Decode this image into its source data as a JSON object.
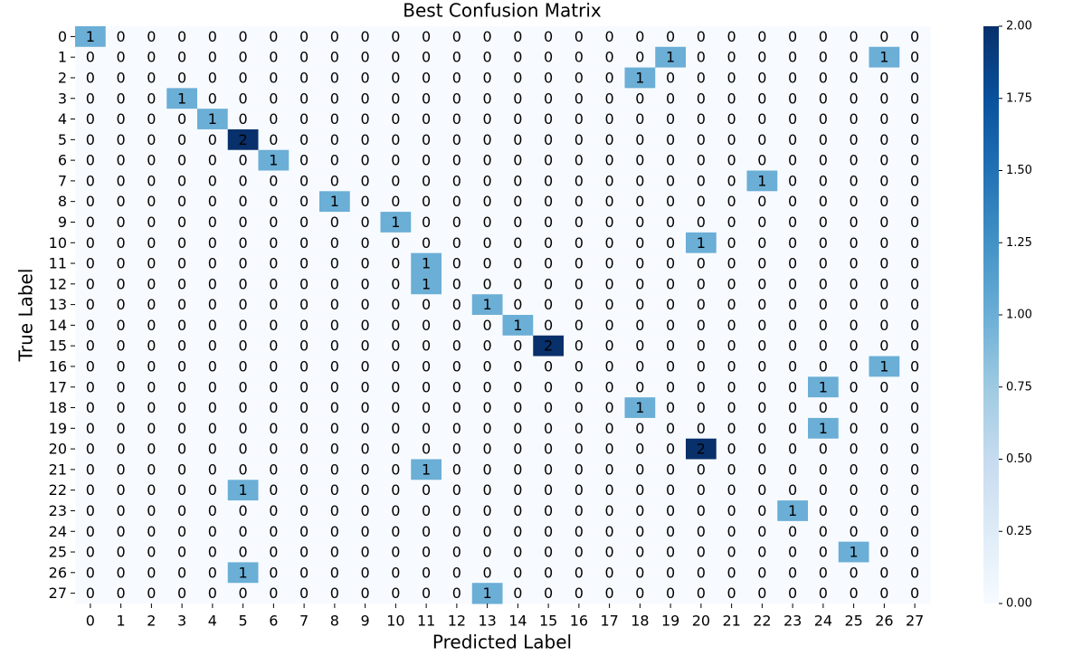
{
  "chart_data": {
    "type": "heatmap",
    "title": "Best Confusion Matrix",
    "x_label": "Predicted Label",
    "y_label": "True Label",
    "x_categories": [
      "0",
      "1",
      "2",
      "3",
      "4",
      "5",
      "6",
      "7",
      "8",
      "9",
      "10",
      "11",
      "12",
      "13",
      "14",
      "15",
      "16",
      "17",
      "18",
      "19",
      "20",
      "21",
      "22",
      "23",
      "24",
      "25",
      "26",
      "27"
    ],
    "y_categories": [
      "0",
      "1",
      "2",
      "3",
      "4",
      "5",
      "6",
      "7",
      "8",
      "9",
      "10",
      "11",
      "12",
      "13",
      "14",
      "15",
      "16",
      "17",
      "18",
      "19",
      "20",
      "21",
      "22",
      "23",
      "24",
      "25",
      "26",
      "27"
    ],
    "values": [
      [
        1,
        0,
        0,
        0,
        0,
        0,
        0,
        0,
        0,
        0,
        0,
        0,
        0,
        0,
        0,
        0,
        0,
        0,
        0,
        0,
        0,
        0,
        0,
        0,
        0,
        0,
        0,
        0
      ],
      [
        0,
        0,
        0,
        0,
        0,
        0,
        0,
        0,
        0,
        0,
        0,
        0,
        0,
        0,
        0,
        0,
        0,
        0,
        0,
        1,
        0,
        0,
        0,
        0,
        0,
        0,
        1,
        0
      ],
      [
        0,
        0,
        0,
        0,
        0,
        0,
        0,
        0,
        0,
        0,
        0,
        0,
        0,
        0,
        0,
        0,
        0,
        0,
        1,
        0,
        0,
        0,
        0,
        0,
        0,
        0,
        0,
        0
      ],
      [
        0,
        0,
        0,
        1,
        0,
        0,
        0,
        0,
        0,
        0,
        0,
        0,
        0,
        0,
        0,
        0,
        0,
        0,
        0,
        0,
        0,
        0,
        0,
        0,
        0,
        0,
        0,
        0
      ],
      [
        0,
        0,
        0,
        0,
        1,
        0,
        0,
        0,
        0,
        0,
        0,
        0,
        0,
        0,
        0,
        0,
        0,
        0,
        0,
        0,
        0,
        0,
        0,
        0,
        0,
        0,
        0,
        0
      ],
      [
        0,
        0,
        0,
        0,
        0,
        2,
        0,
        0,
        0,
        0,
        0,
        0,
        0,
        0,
        0,
        0,
        0,
        0,
        0,
        0,
        0,
        0,
        0,
        0,
        0,
        0,
        0,
        0
      ],
      [
        0,
        0,
        0,
        0,
        0,
        0,
        1,
        0,
        0,
        0,
        0,
        0,
        0,
        0,
        0,
        0,
        0,
        0,
        0,
        0,
        0,
        0,
        0,
        0,
        0,
        0,
        0,
        0
      ],
      [
        0,
        0,
        0,
        0,
        0,
        0,
        0,
        0,
        0,
        0,
        0,
        0,
        0,
        0,
        0,
        0,
        0,
        0,
        0,
        0,
        0,
        0,
        1,
        0,
        0,
        0,
        0,
        0
      ],
      [
        0,
        0,
        0,
        0,
        0,
        0,
        0,
        0,
        1,
        0,
        0,
        0,
        0,
        0,
        0,
        0,
        0,
        0,
        0,
        0,
        0,
        0,
        0,
        0,
        0,
        0,
        0,
        0
      ],
      [
        0,
        0,
        0,
        0,
        0,
        0,
        0,
        0,
        0,
        0,
        1,
        0,
        0,
        0,
        0,
        0,
        0,
        0,
        0,
        0,
        0,
        0,
        0,
        0,
        0,
        0,
        0,
        0
      ],
      [
        0,
        0,
        0,
        0,
        0,
        0,
        0,
        0,
        0,
        0,
        0,
        0,
        0,
        0,
        0,
        0,
        0,
        0,
        0,
        0,
        1,
        0,
        0,
        0,
        0,
        0,
        0,
        0
      ],
      [
        0,
        0,
        0,
        0,
        0,
        0,
        0,
        0,
        0,
        0,
        0,
        1,
        0,
        0,
        0,
        0,
        0,
        0,
        0,
        0,
        0,
        0,
        0,
        0,
        0,
        0,
        0,
        0
      ],
      [
        0,
        0,
        0,
        0,
        0,
        0,
        0,
        0,
        0,
        0,
        0,
        1,
        0,
        0,
        0,
        0,
        0,
        0,
        0,
        0,
        0,
        0,
        0,
        0,
        0,
        0,
        0,
        0
      ],
      [
        0,
        0,
        0,
        0,
        0,
        0,
        0,
        0,
        0,
        0,
        0,
        0,
        0,
        1,
        0,
        0,
        0,
        0,
        0,
        0,
        0,
        0,
        0,
        0,
        0,
        0,
        0,
        0
      ],
      [
        0,
        0,
        0,
        0,
        0,
        0,
        0,
        0,
        0,
        0,
        0,
        0,
        0,
        0,
        1,
        0,
        0,
        0,
        0,
        0,
        0,
        0,
        0,
        0,
        0,
        0,
        0,
        0
      ],
      [
        0,
        0,
        0,
        0,
        0,
        0,
        0,
        0,
        0,
        0,
        0,
        0,
        0,
        0,
        0,
        2,
        0,
        0,
        0,
        0,
        0,
        0,
        0,
        0,
        0,
        0,
        0,
        0
      ],
      [
        0,
        0,
        0,
        0,
        0,
        0,
        0,
        0,
        0,
        0,
        0,
        0,
        0,
        0,
        0,
        0,
        0,
        0,
        0,
        0,
        0,
        0,
        0,
        0,
        0,
        0,
        1,
        0
      ],
      [
        0,
        0,
        0,
        0,
        0,
        0,
        0,
        0,
        0,
        0,
        0,
        0,
        0,
        0,
        0,
        0,
        0,
        0,
        0,
        0,
        0,
        0,
        0,
        0,
        1,
        0,
        0,
        0
      ],
      [
        0,
        0,
        0,
        0,
        0,
        0,
        0,
        0,
        0,
        0,
        0,
        0,
        0,
        0,
        0,
        0,
        0,
        0,
        1,
        0,
        0,
        0,
        0,
        0,
        0,
        0,
        0,
        0
      ],
      [
        0,
        0,
        0,
        0,
        0,
        0,
        0,
        0,
        0,
        0,
        0,
        0,
        0,
        0,
        0,
        0,
        0,
        0,
        0,
        0,
        0,
        0,
        0,
        0,
        1,
        0,
        0,
        0
      ],
      [
        0,
        0,
        0,
        0,
        0,
        0,
        0,
        0,
        0,
        0,
        0,
        0,
        0,
        0,
        0,
        0,
        0,
        0,
        0,
        0,
        2,
        0,
        0,
        0,
        0,
        0,
        0,
        0
      ],
      [
        0,
        0,
        0,
        0,
        0,
        0,
        0,
        0,
        0,
        0,
        0,
        1,
        0,
        0,
        0,
        0,
        0,
        0,
        0,
        0,
        0,
        0,
        0,
        0,
        0,
        0,
        0,
        0
      ],
      [
        0,
        0,
        0,
        0,
        0,
        1,
        0,
        0,
        0,
        0,
        0,
        0,
        0,
        0,
        0,
        0,
        0,
        0,
        0,
        0,
        0,
        0,
        0,
        0,
        0,
        0,
        0,
        0
      ],
      [
        0,
        0,
        0,
        0,
        0,
        0,
        0,
        0,
        0,
        0,
        0,
        0,
        0,
        0,
        0,
        0,
        0,
        0,
        0,
        0,
        0,
        0,
        0,
        1,
        0,
        0,
        0,
        0
      ],
      [
        0,
        0,
        0,
        0,
        0,
        0,
        0,
        0,
        0,
        0,
        0,
        0,
        0,
        0,
        0,
        0,
        0,
        0,
        0,
        0,
        0,
        0,
        0,
        0,
        0,
        0,
        0,
        0
      ],
      [
        0,
        0,
        0,
        0,
        0,
        0,
        0,
        0,
        0,
        0,
        0,
        0,
        0,
        0,
        0,
        0,
        0,
        0,
        0,
        0,
        0,
        0,
        0,
        0,
        0,
        1,
        0,
        0
      ],
      [
        0,
        0,
        0,
        0,
        0,
        1,
        0,
        0,
        0,
        0,
        0,
        0,
        0,
        0,
        0,
        0,
        0,
        0,
        0,
        0,
        0,
        0,
        0,
        0,
        0,
        0,
        0,
        0
      ],
      [
        0,
        0,
        0,
        0,
        0,
        0,
        0,
        0,
        0,
        0,
        0,
        0,
        0,
        1,
        0,
        0,
        0,
        0,
        0,
        0,
        0,
        0,
        0,
        0,
        0,
        0,
        0,
        0
      ]
    ],
    "colormap": "Blues",
    "clim": [
      0,
      2
    ],
    "cticks": [
      {
        "value": 0,
        "label": "0.00"
      },
      {
        "value": 0.25,
        "label": "0.25"
      },
      {
        "value": 0.5,
        "label": "0.50"
      },
      {
        "value": 0.75,
        "label": "0.75"
      },
      {
        "value": 1,
        "label": "1.00"
      },
      {
        "value": 1.25,
        "label": "1.25"
      },
      {
        "value": 1.5,
        "label": "1.50"
      },
      {
        "value": 1.75,
        "label": "1.75"
      },
      {
        "value": 2,
        "label": "2.00"
      }
    ]
  }
}
